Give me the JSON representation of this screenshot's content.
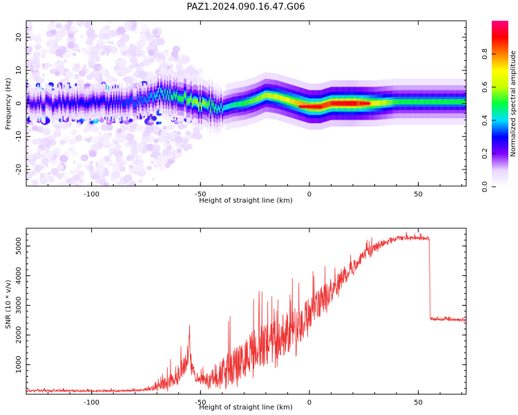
{
  "figure_title": "PAZ1.2024.090.16.47.G06",
  "chart_data": [
    {
      "type": "heatmap",
      "title": "",
      "xlabel": "Height of straight line (km)",
      "ylabel": "Frequency (Hz)",
      "xlim": [
        -130,
        72
      ],
      "ylim": [
        -25,
        25
      ],
      "xticks": [
        -100,
        -50,
        0,
        50
      ],
      "yticks": [
        -20,
        -10,
        0,
        10,
        20
      ],
      "colorbar": {
        "label": "Normalized spectral amplitude",
        "range": [
          0,
          1
        ],
        "ticks": [
          0.0,
          0.2,
          0.4,
          0.6,
          0.8
        ],
        "colormap": [
          "#ffffff",
          "#e9d6ff",
          "#8000ff",
          "#0000ff",
          "#00e0ff",
          "#00ff40",
          "#c8ff00",
          "#ffff00",
          "#ff8000",
          "#ff0000",
          "#ff0080"
        ]
      },
      "ridge": {
        "x": [
          -130,
          -110,
          -90,
          -75,
          -70,
          -65,
          -60,
          -55,
          -50,
          -45,
          -40,
          -35,
          -30,
          -25,
          -20,
          -15,
          -10,
          -5,
          0,
          5,
          10,
          20,
          30,
          40,
          50,
          60,
          72
        ],
        "freq": [
          0,
          0,
          0,
          1,
          3,
          3,
          2,
          1,
          0,
          -1,
          -1.5,
          -0.5,
          0,
          1,
          2.5,
          2,
          1,
          0,
          -1,
          -1,
          0,
          0,
          0,
          0.5,
          0.5,
          0.5,
          0.5
        ],
        "amplitude": [
          0.25,
          0.3,
          0.3,
          0.35,
          0.4,
          0.45,
          0.5,
          0.55,
          0.6,
          0.5,
          0.4,
          0.45,
          0.5,
          0.55,
          0.6,
          0.65,
          0.7,
          0.75,
          0.8,
          0.85,
          0.85,
          0.9,
          0.7,
          0.5,
          0.5,
          0.5,
          0.5
        ]
      }
    },
    {
      "type": "line",
      "title": "",
      "xlabel": "Height of straight line (km)",
      "ylabel": "SNR (10 * v/v)",
      "xlim": [
        -130,
        72
      ],
      "ylim": [
        0,
        5600
      ],
      "xticks": [
        -100,
        -50,
        0,
        50
      ],
      "yticks": [
        1000,
        2000,
        3000,
        4000,
        5000
      ],
      "series": [
        {
          "color": "#ee3333",
          "envelope": {
            "x": [
              -130,
              -100,
              -80,
              -75,
              -70,
              -65,
              -60,
              -58,
              -56,
              -55,
              -54,
              -52,
              -50,
              -45,
              -40,
              -35,
              -33,
              -30,
              -25,
              -20,
              -15,
              -10,
              -5,
              0,
              5,
              10,
              15,
              20,
              25,
              30,
              35,
              40,
              45,
              50,
              55,
              55.5,
              60,
              65,
              72
            ],
            "base": [
              120,
              110,
              120,
              150,
              250,
              400,
              700,
              900,
              1100,
              2000,
              900,
              500,
              500,
              550,
              700,
              900,
              1000,
              1200,
              1500,
              1700,
              1900,
              2100,
              2300,
              2700,
              3100,
              3500,
              3900,
              4300,
              4700,
              4950,
              5150,
              5250,
              5280,
              5250,
              5250,
              2550,
              2530,
              2510,
              2500
            ],
            "spread": [
              60,
              60,
              60,
              80,
              200,
              400,
              600,
              500,
              700,
              900,
              500,
              200,
              200,
              600,
              900,
              1300,
              1000,
              1100,
              1200,
              1200,
              1300,
              1200,
              1100,
              900,
              800,
              700,
              500,
              400,
              300,
              250,
              180,
              130,
              110,
              110,
              110,
              80,
              80,
              70,
              70
            ]
          }
        }
      ]
    }
  ]
}
